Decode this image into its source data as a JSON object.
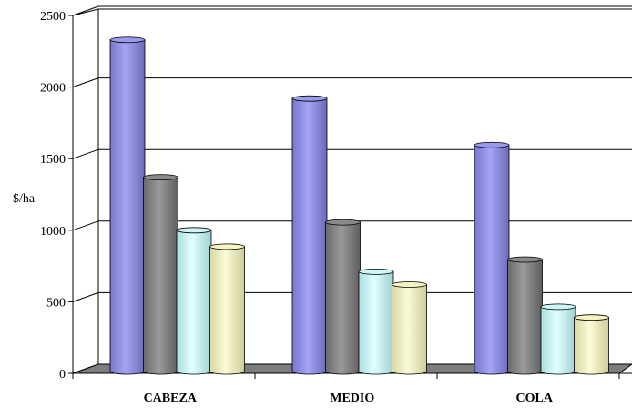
{
  "chart_data": {
    "type": "bar",
    "style": "3d-cylinder",
    "categories": [
      "CABEZA",
      "MEDIO",
      "COLA"
    ],
    "series": [
      {
        "values": [
          2330,
          1920,
          1595
        ],
        "color": "#9999ee"
      },
      {
        "values": [
          1370,
          1055,
          795
        ],
        "color": "#8a8a8a"
      },
      {
        "values": [
          1000,
          710,
          465
        ],
        "color": "#cdf6f6"
      },
      {
        "values": [
          885,
          620,
          390
        ],
        "color": "#f5f5c4"
      }
    ],
    "title": "",
    "xlabel": "",
    "ylabel": "$/ha",
    "ylim": [
      0,
      2500
    ],
    "yticks": [
      0,
      500,
      1000,
      1500,
      2000,
      2500
    ],
    "grid": true,
    "legend": "none"
  }
}
